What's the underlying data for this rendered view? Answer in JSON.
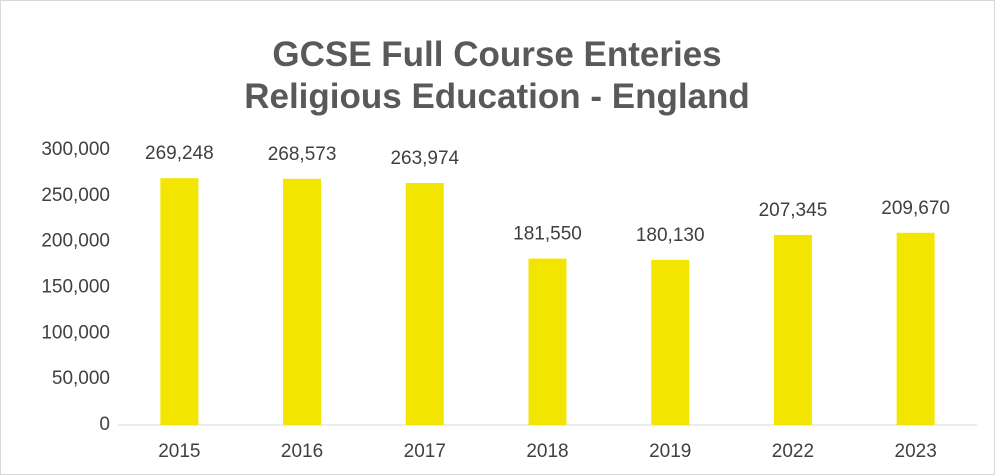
{
  "chart_data": {
    "type": "bar",
    "title": "GCSE Full Course Enteries Religious Education - England",
    "categories": [
      "2015",
      "2016",
      "2017",
      "2018",
      "2019",
      "2022",
      "2023"
    ],
    "values": [
      269248,
      268573,
      263974,
      181550,
      180130,
      207345,
      209670
    ],
    "value_labels": [
      "269,248",
      "268,573",
      "263,974",
      "181,550",
      "180,130",
      "207,345",
      "209,670"
    ],
    "color": "#f2e600",
    "ylim": [
      0,
      300000
    ],
    "yticks": [
      0,
      {
        "value": 50000,
        "label": "50,000"
      },
      {
        "value": 100000,
        "label": "100,000"
      },
      {
        "value": 150000,
        "label": "150,000"
      },
      {
        "value": 200000,
        "label": "200,000"
      },
      {
        "value": 250000,
        "label": "250,000"
      },
      {
        "value": 300000,
        "label": "300,000"
      }
    ],
    "grid": false
  }
}
